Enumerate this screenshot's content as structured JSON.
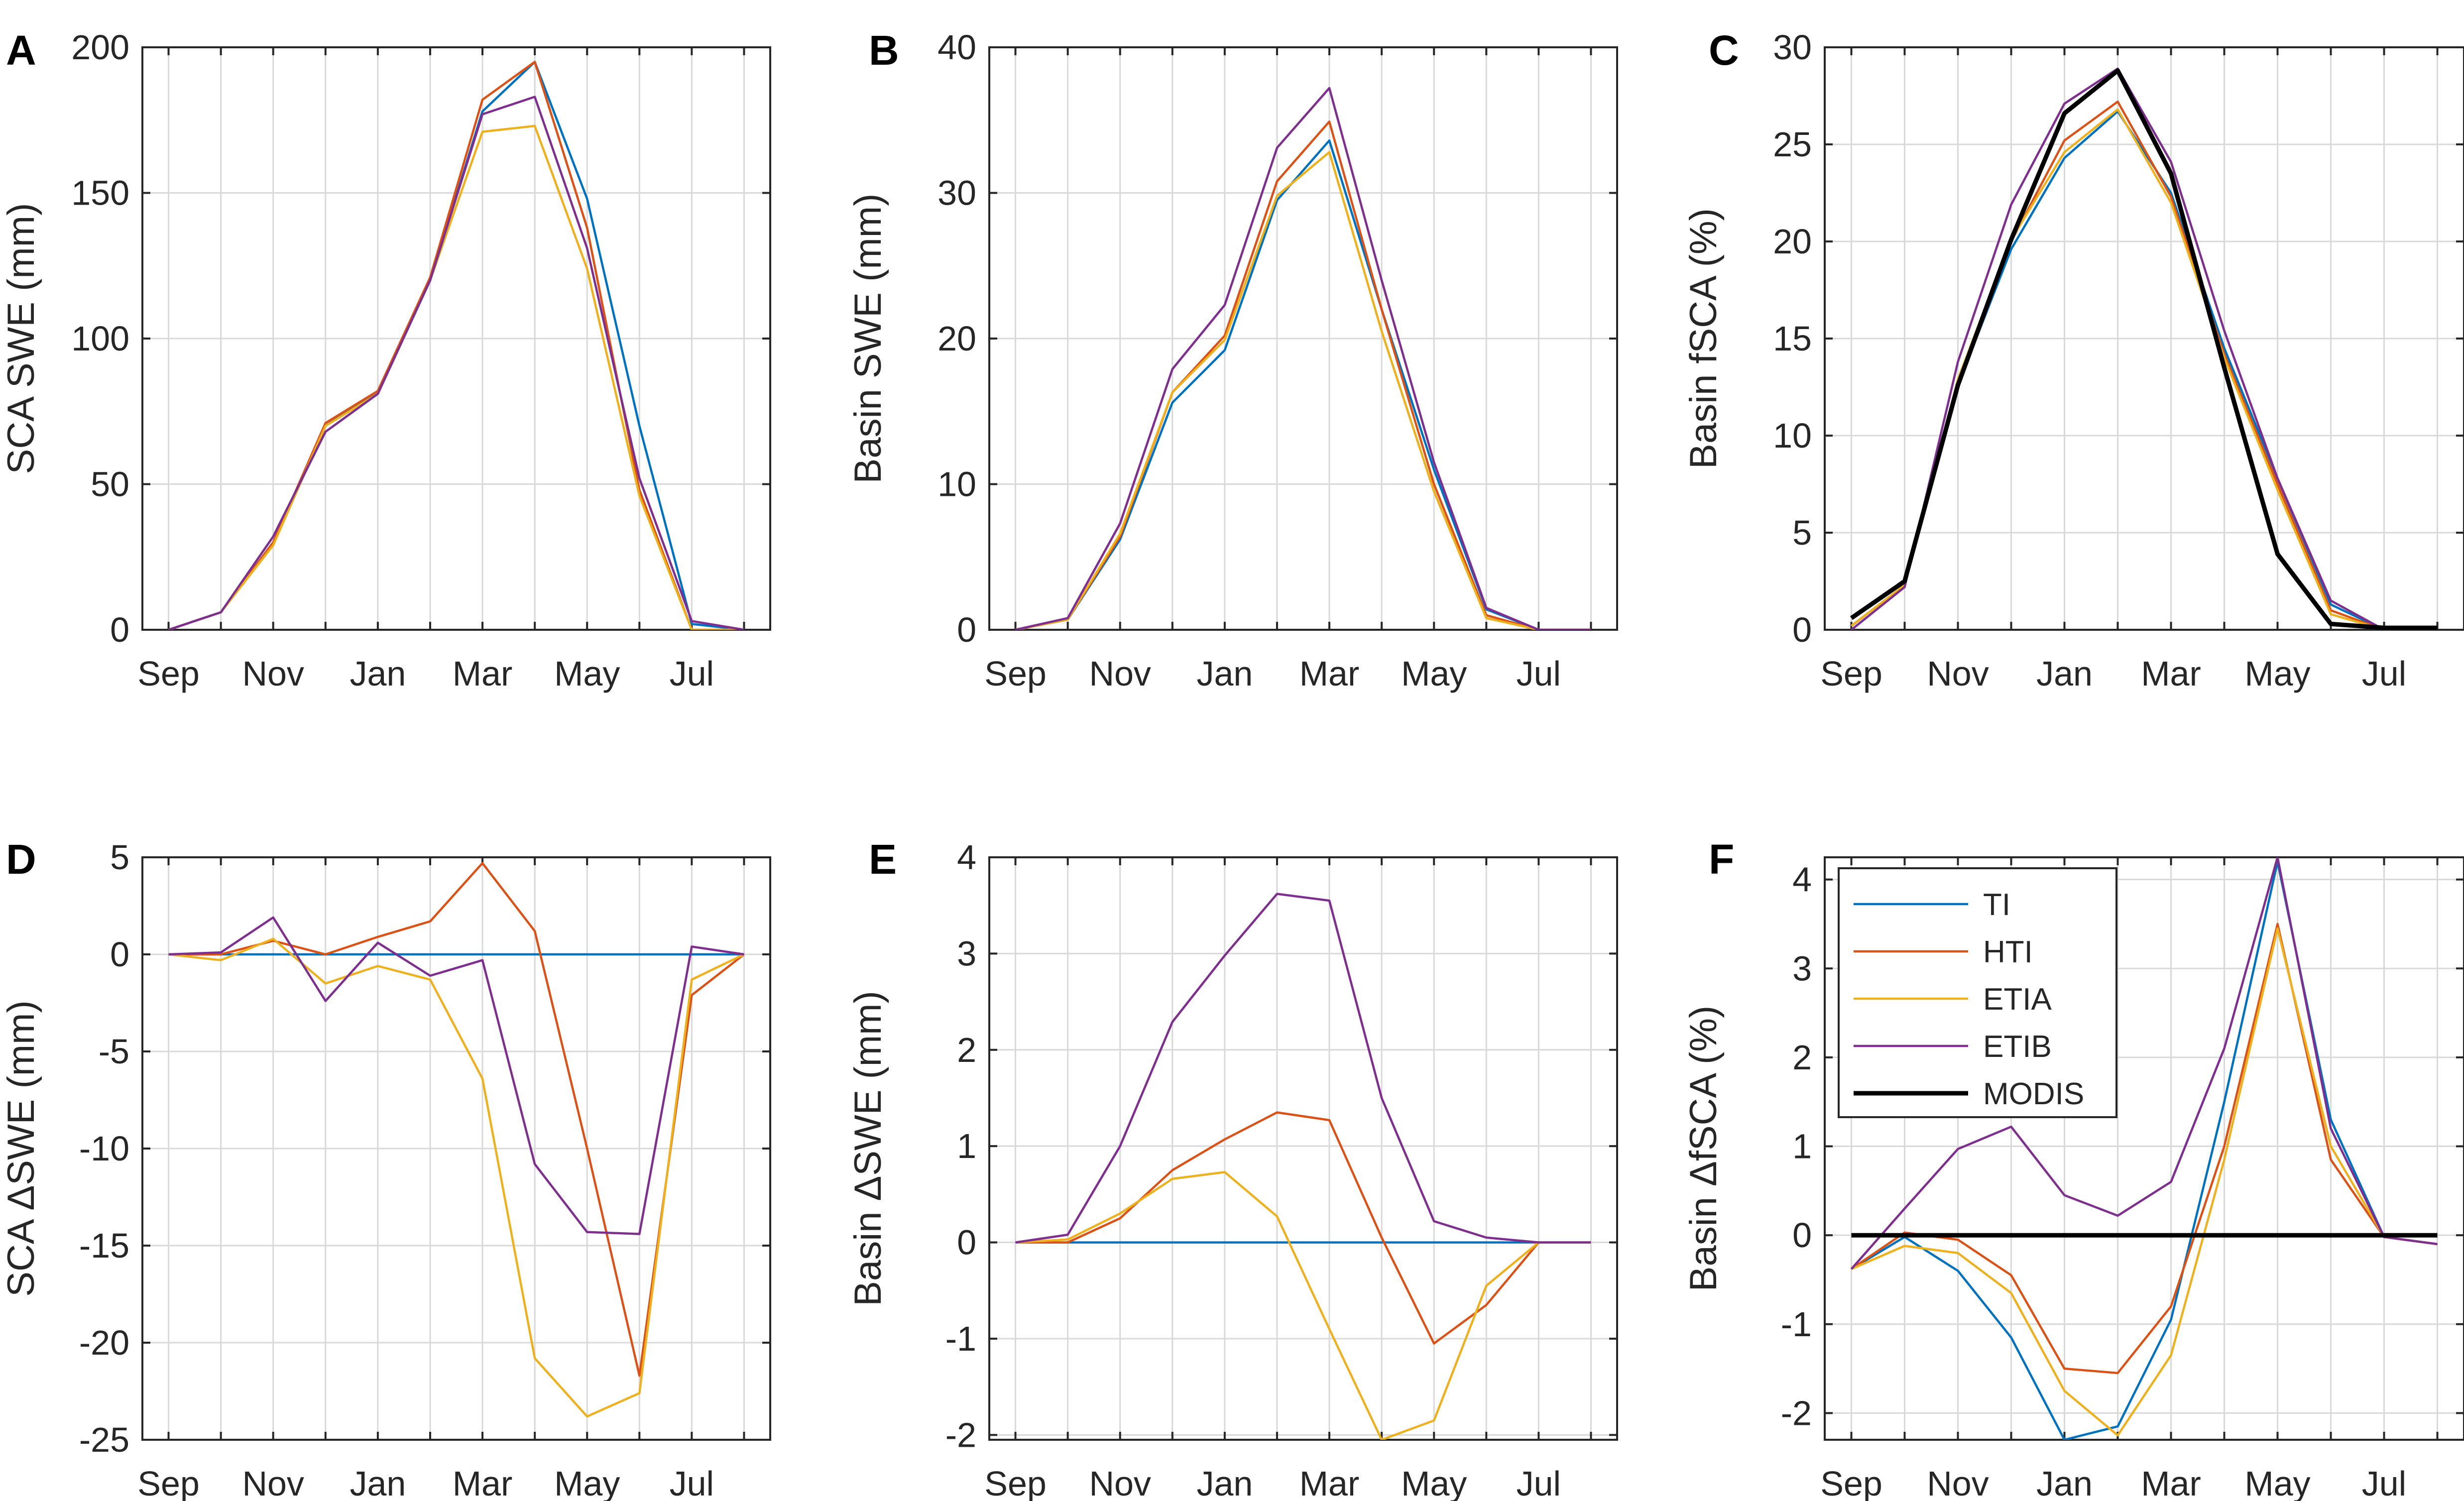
{
  "figure": {
    "colors": {
      "TI": "#0072BD",
      "HTI": "#D95319",
      "ETIA": "#EDB120",
      "ETIB": "#7E2F8E",
      "MODIS": "#000000"
    },
    "legend": {
      "entries": [
        "TI",
        "HTI",
        "ETIA",
        "ETIB",
        "MODIS"
      ],
      "location": "top-left of panel F"
    }
  },
  "chart_data": [
    {
      "type": "line",
      "panel": "A",
      "ylabel": "SCA SWE (mm)",
      "xlabel": "",
      "ylim": [
        0,
        200
      ],
      "yticks": [
        "0",
        "50",
        "100",
        "150",
        "200"
      ],
      "xlim": [
        0.5,
        12.5
      ],
      "xticks": [
        1,
        3,
        5,
        7,
        9,
        11
      ],
      "xtick_labels": [
        "Sep",
        "Nov",
        "Jan",
        "Mar",
        "May",
        "Jul"
      ],
      "x": [
        1,
        2,
        3,
        4,
        5,
        6,
        7,
        8,
        9,
        10,
        11,
        12
      ],
      "grid": true,
      "series": [
        {
          "name": "TI",
          "values": [
            0,
            6,
            30,
            70,
            82,
            120,
            178,
            195,
            148,
            70,
            2,
            0
          ]
        },
        {
          "name": "HTI",
          "values": [
            0,
            6,
            30,
            71,
            82,
            121,
            182,
            195,
            138,
            48,
            0,
            0
          ]
        },
        {
          "name": "ETIA",
          "values": [
            0,
            6,
            29,
            70,
            81,
            120,
            171,
            173,
            124,
            46,
            0,
            0
          ]
        },
        {
          "name": "ETIB",
          "values": [
            0,
            6,
            32,
            68,
            81,
            120,
            177,
            183,
            131,
            52,
            3,
            0
          ]
        }
      ]
    },
    {
      "type": "line",
      "panel": "B",
      "ylabel": "Basin SWE (mm)",
      "xlabel": "",
      "ylim": [
        0,
        40
      ],
      "yticks": [
        "0",
        "10",
        "20",
        "30",
        "40"
      ],
      "xlim": [
        0.5,
        12.5
      ],
      "xticks": [
        1,
        3,
        5,
        7,
        9,
        11
      ],
      "xtick_labels": [
        "Sep",
        "Nov",
        "Jan",
        "Mar",
        "May",
        "Jul"
      ],
      "x": [
        1,
        2,
        3,
        4,
        5,
        6,
        7,
        8,
        9,
        10,
        11,
        12
      ],
      "grid": true,
      "series": [
        {
          "name": "TI",
          "values": [
            0,
            0.7,
            6.2,
            15.6,
            19.2,
            29.5,
            33.6,
            22,
            11,
            1.4,
            0,
            0
          ]
        },
        {
          "name": "HTI",
          "values": [
            0,
            0.7,
            6.4,
            16.3,
            20.2,
            30.8,
            34.9,
            22,
            10,
            1.0,
            0,
            0
          ]
        },
        {
          "name": "ETIA",
          "values": [
            0,
            0.7,
            6.6,
            16.3,
            19.9,
            29.8,
            32.8,
            20.5,
            9.5,
            0.8,
            0,
            0
          ]
        },
        {
          "name": "ETIB",
          "values": [
            0,
            0.8,
            7.3,
            17.9,
            22.3,
            33.1,
            37.2,
            24,
            11.5,
            1.5,
            0,
            0
          ]
        }
      ]
    },
    {
      "type": "line",
      "panel": "C",
      "ylabel": "Basin fSCA (%)",
      "xlabel": "",
      "ylim": [
        0,
        30
      ],
      "yticks": [
        "0",
        "5",
        "10",
        "15",
        "20",
        "25",
        "30"
      ],
      "xlim": [
        0.5,
        12.5
      ],
      "xticks": [
        1,
        3,
        5,
        7,
        9,
        11
      ],
      "xtick_labels": [
        "Sep",
        "Nov",
        "Jan",
        "Mar",
        "May",
        "Jul"
      ],
      "x": [
        1,
        2,
        3,
        4,
        5,
        6,
        7,
        8,
        9,
        10,
        11,
        12
      ],
      "grid": true,
      "series": [
        {
          "name": "TI",
          "values": [
            0.2,
            2.3,
            12.6,
            19.6,
            24.3,
            26.7,
            22.5,
            14.5,
            7.8,
            1.3,
            0,
            0
          ]
        },
        {
          "name": "HTI",
          "values": [
            0.2,
            2.3,
            12.8,
            20.0,
            25.2,
            27.2,
            22.3,
            14.2,
            7.5,
            1.0,
            0,
            0
          ]
        },
        {
          "name": "ETIA",
          "values": [
            0.2,
            2.3,
            12.9,
            20.1,
            24.6,
            26.8,
            22.0,
            14.0,
            7.2,
            0.8,
            0,
            0
          ]
        },
        {
          "name": "ETIB",
          "values": [
            0,
            2.2,
            13.8,
            21.9,
            27.1,
            28.9,
            24.1,
            15.4,
            7.8,
            1.5,
            0,
            0
          ]
        },
        {
          "name": "MODIS",
          "values": [
            0.6,
            2.5,
            12.6,
            20.1,
            26.6,
            28.8,
            23.5,
            13.5,
            3.9,
            0.3,
            0.1,
            0.1
          ]
        }
      ]
    },
    {
      "type": "line",
      "panel": "D",
      "ylabel": "SCA ΔSWE (mm)",
      "xlabel": "",
      "ylim": [
        -25,
        5
      ],
      "yticks": [
        "-25",
        "-20",
        "-15",
        "-10",
        "-5",
        "0",
        "5"
      ],
      "xlim": [
        0.5,
        12.5
      ],
      "xticks": [
        1,
        3,
        5,
        7,
        9,
        11
      ],
      "xtick_labels": [
        "Sep",
        "Nov",
        "Jan",
        "Mar",
        "May",
        "Jul"
      ],
      "x": [
        1,
        2,
        3,
        4,
        5,
        6,
        7,
        8,
        9,
        10,
        11,
        12
      ],
      "grid": true,
      "series": [
        {
          "name": "TI",
          "values": [
            0,
            0,
            0,
            0,
            0,
            0,
            0,
            0,
            0,
            0,
            0,
            0
          ]
        },
        {
          "name": "HTI",
          "values": [
            0,
            0,
            0.7,
            0,
            0.9,
            1.7,
            4.7,
            1.2,
            -10,
            -21.7,
            -2.1,
            0
          ]
        },
        {
          "name": "ETIA",
          "values": [
            0,
            -0.3,
            0.8,
            -1.5,
            -0.6,
            -1.3,
            -6.4,
            -20.8,
            -23.8,
            -22.6,
            -1.3,
            0
          ]
        },
        {
          "name": "ETIB",
          "values": [
            0,
            0.1,
            1.9,
            -2.4,
            0.6,
            -1.1,
            -0.3,
            -10.8,
            -14.3,
            -14.4,
            0.4,
            0
          ]
        }
      ]
    },
    {
      "type": "line",
      "panel": "E",
      "ylabel": "Basin ΔSWE (mm)",
      "xlabel": "",
      "ylim": [
        -2.05,
        4
      ],
      "yticks": [
        "-2",
        "-1",
        "0",
        "1",
        "2",
        "3",
        "4"
      ],
      "xlim": [
        0.5,
        12.5
      ],
      "xticks": [
        1,
        3,
        5,
        7,
        9,
        11
      ],
      "xtick_labels": [
        "Sep",
        "Nov",
        "Jan",
        "Mar",
        "May",
        "Jul"
      ],
      "x": [
        1,
        2,
        3,
        4,
        5,
        6,
        7,
        8,
        9,
        10,
        11,
        12
      ],
      "grid": true,
      "series": [
        {
          "name": "TI",
          "values": [
            0,
            0,
            0,
            0,
            0,
            0,
            0,
            0,
            0,
            0,
            0,
            0
          ]
        },
        {
          "name": "HTI",
          "values": [
            0,
            0,
            0.25,
            0.75,
            1.07,
            1.35,
            1.27,
            0.05,
            -1.05,
            -0.65,
            0,
            0
          ]
        },
        {
          "name": "ETIA",
          "values": [
            0,
            0.03,
            0.3,
            0.66,
            0.73,
            0.27,
            -0.9,
            -2.05,
            -1.85,
            -0.45,
            0,
            0
          ]
        },
        {
          "name": "ETIB",
          "values": [
            0,
            0.08,
            1.0,
            2.29,
            2.98,
            3.62,
            3.55,
            1.5,
            0.22,
            0.05,
            0,
            0
          ]
        }
      ]
    },
    {
      "type": "line",
      "panel": "F",
      "ylabel": "Basin ΔfSCA (%)",
      "xlabel": "",
      "ylim": [
        -2.3,
        4.25
      ],
      "yticks": [
        "-2",
        "-1",
        "0",
        "1",
        "2",
        "3",
        "4"
      ],
      "xlim": [
        0.5,
        12.5
      ],
      "xticks": [
        1,
        3,
        5,
        7,
        9,
        11
      ],
      "xtick_labels": [
        "Sep",
        "Nov",
        "Jan",
        "Mar",
        "May",
        "Jul"
      ],
      "x": [
        1,
        2,
        3,
        4,
        5,
        6,
        7,
        8,
        9,
        10,
        11,
        12
      ],
      "grid": true,
      "series": [
        {
          "name": "TI",
          "values": [
            -0.38,
            -0.02,
            -0.4,
            -1.15,
            -2.3,
            -2.15,
            -0.95,
            1.5,
            4.2,
            1.3,
            -0.02,
            -0.1
          ]
        },
        {
          "name": "HTI",
          "values": [
            -0.38,
            0.03,
            -0.05,
            -0.45,
            -1.5,
            -1.55,
            -0.8,
            1.0,
            3.5,
            0.85,
            -0.02,
            -0.1
          ]
        },
        {
          "name": "ETIA",
          "values": [
            -0.38,
            -0.12,
            -0.2,
            -0.65,
            -1.75,
            -2.25,
            -1.35,
            0.85,
            3.45,
            1.0,
            -0.02,
            -0.1
          ]
        },
        {
          "name": "ETIB",
          "values": [
            -0.38,
            0.3,
            0.97,
            1.22,
            0.45,
            0.22,
            0.6,
            2.1,
            4.25,
            1.2,
            -0.02,
            -0.1
          ]
        },
        {
          "name": "MODIS",
          "values": [
            0,
            0,
            0,
            0,
            0,
            0,
            0,
            0,
            0,
            0,
            0,
            0
          ]
        }
      ]
    }
  ]
}
